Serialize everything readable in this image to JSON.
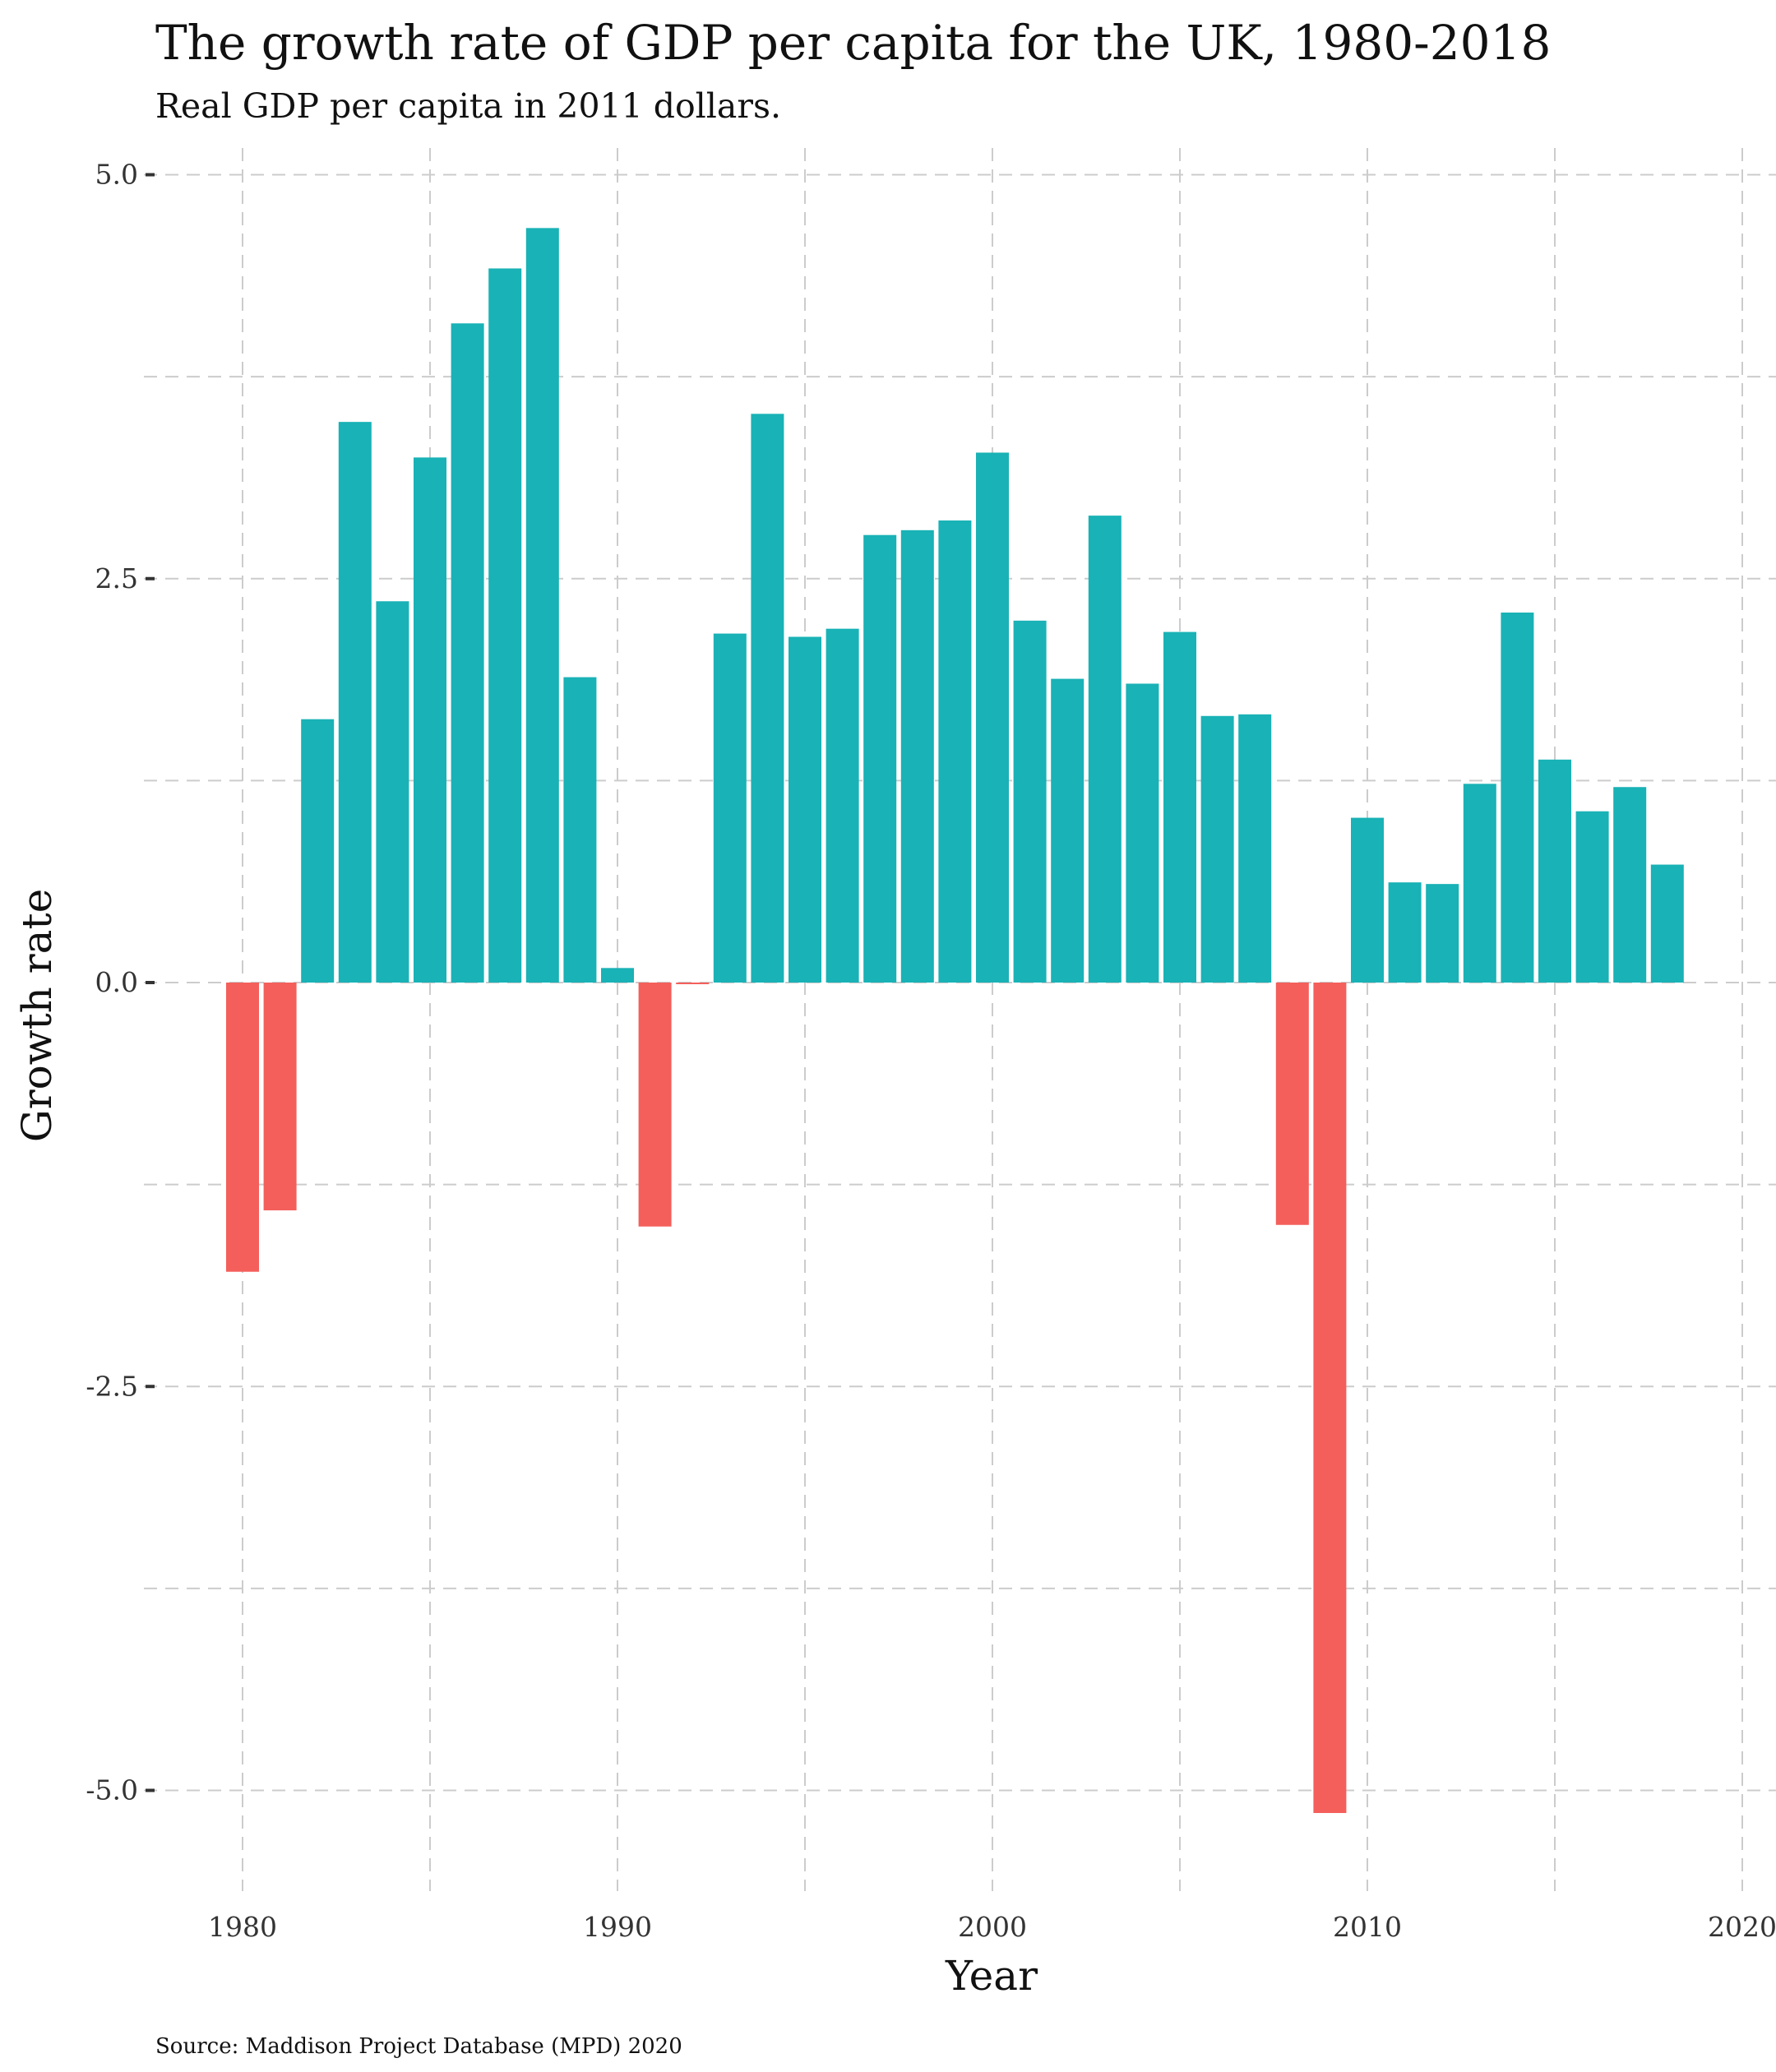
{
  "chart_data": {
    "type": "bar",
    "title": "The growth rate of GDP per capita for the UK, 1980-2018",
    "subtitle": "Real GDP per capita in 2011 dollars.",
    "caption": "Source: Maddison Project Database (MPD) 2020",
    "xlabel": "Year",
    "ylabel": "Growth rate",
    "xlim": [
      1979,
      2020
    ],
    "ylim": [
      -5.6,
      5.0
    ],
    "x_ticks": [
      1980,
      1990,
      2000,
      2010,
      2020
    ],
    "x_tick_labels": [
      "1980",
      "1990",
      "2000",
      "2010",
      "2020"
    ],
    "y_ticks": [
      5.0,
      2.5,
      0.0,
      -2.5,
      -5.0
    ],
    "y_tick_labels": [
      "5.0",
      "2.5",
      "0.0",
      "-2.5",
      "-5.0"
    ],
    "grid": true,
    "legend": "none",
    "colors": {
      "positive": "#19B2B6",
      "negative": "#F45F5B",
      "grid": "#cccccc"
    },
    "x": [
      1980,
      1981,
      1982,
      1983,
      1984,
      1985,
      1986,
      1987,
      1988,
      1989,
      1990,
      1991,
      1992,
      1993,
      1994,
      1995,
      1996,
      1997,
      1998,
      1999,
      2000,
      2001,
      2002,
      2003,
      2004,
      2005,
      2006,
      2007,
      2008,
      2009,
      2010,
      2011,
      2012,
      2013,
      2014,
      2015,
      2016,
      2017,
      2018
    ],
    "values": [
      -1.79,
      -1.41,
      1.63,
      3.47,
      2.36,
      3.25,
      4.08,
      4.42,
      4.67,
      1.89,
      0.09,
      -1.51,
      -0.01,
      2.16,
      3.52,
      2.14,
      2.19,
      2.77,
      2.8,
      2.86,
      3.28,
      2.24,
      1.88,
      2.89,
      1.85,
      2.17,
      1.65,
      1.66,
      -1.5,
      -5.14,
      1.02,
      0.62,
      0.61,
      1.23,
      2.29,
      1.38,
      1.06,
      1.21,
      0.73
    ]
  }
}
